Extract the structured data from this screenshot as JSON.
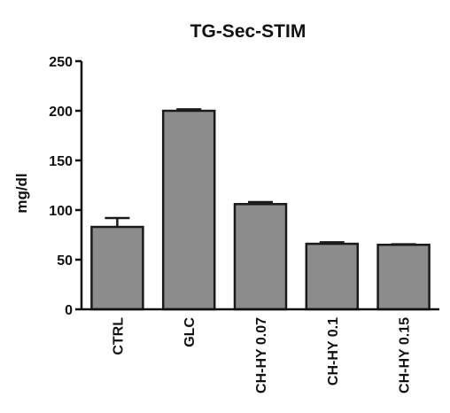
{
  "chart_data": {
    "type": "bar",
    "title": "TG-Sec-STIM",
    "xlabel": "",
    "ylabel": "mg/dl",
    "ylim": [
      0,
      250
    ],
    "yticks": [
      0,
      50,
      100,
      150,
      200,
      250
    ],
    "categories": [
      "CTRL",
      "GLC",
      "CH-HY 0.07",
      "CH-HY 0.1",
      "CH-HY 0.15"
    ],
    "values": [
      83,
      200,
      106,
      66,
      65
    ],
    "errors": [
      9,
      1.5,
      2,
      1.5,
      0.5
    ],
    "bar_color": "#8c8c8c",
    "grid": false,
    "legend": "none"
  }
}
